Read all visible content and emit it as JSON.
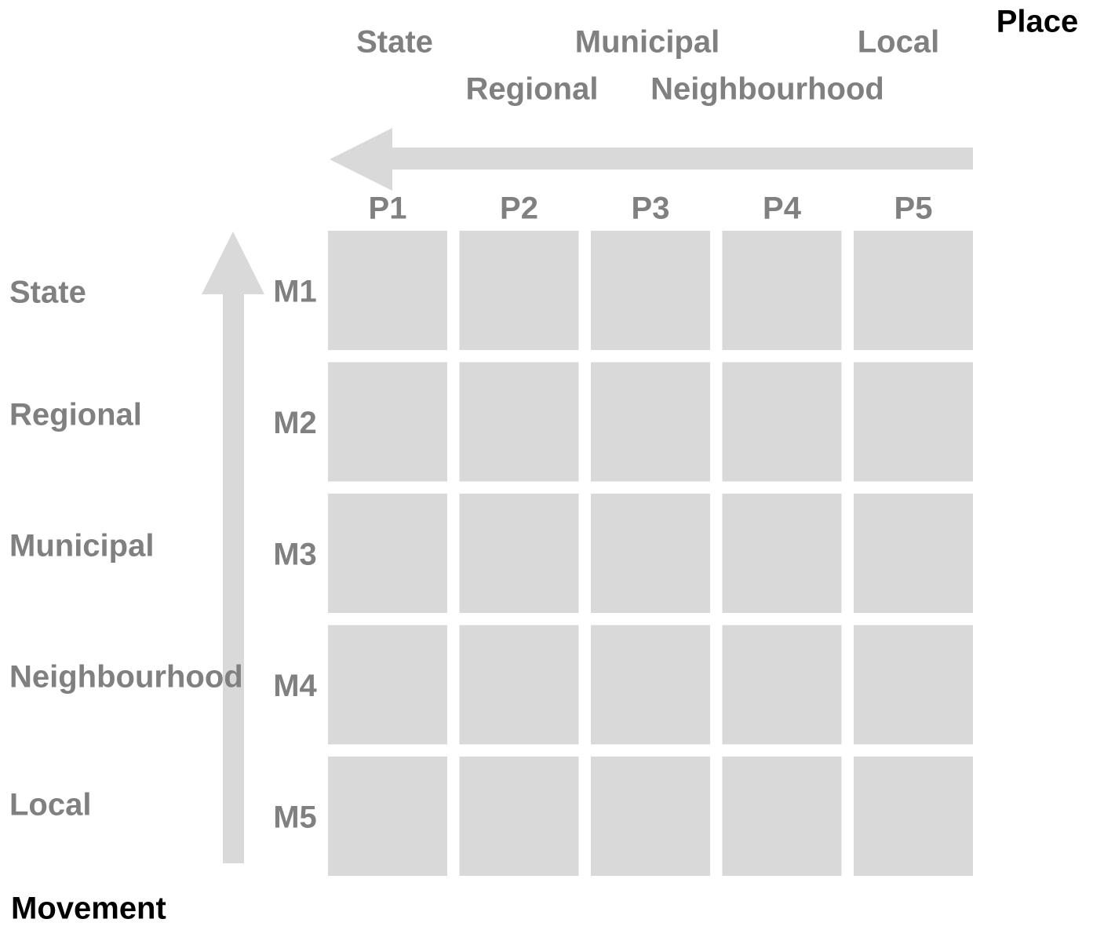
{
  "place": {
    "title": "Place",
    "levels": [
      "State",
      "Regional",
      "Municipal",
      "Neighbourhood",
      "Local"
    ],
    "columns": [
      "P1",
      "P2",
      "P3",
      "P4",
      "P5"
    ]
  },
  "movement": {
    "title": "Movement",
    "levels": [
      "State",
      "Regional",
      "Municipal",
      "Neighbourhood",
      "Local"
    ],
    "rows": [
      "M1",
      "M2",
      "M3",
      "M4",
      "M5"
    ]
  }
}
